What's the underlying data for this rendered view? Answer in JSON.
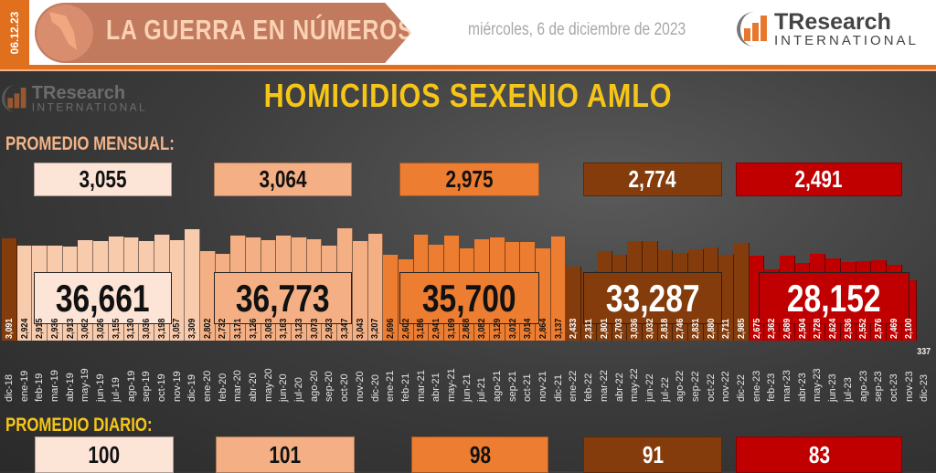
{
  "header": {
    "date_strip": "06.12.23",
    "banner_title": "LA GUERRA EN NÚMEROS",
    "date_text": "miércoles, 6 de diciembre de 2023",
    "logo_brand": "TResearch",
    "logo_sub": "INTERNATIONAL"
  },
  "chart_data": {
    "type": "bar",
    "title": "HOMICIDIOS SEXENIO AMLO",
    "categories": [
      "dic-18",
      "ene-19",
      "feb-19",
      "mar-19",
      "abr-19",
      "may-19",
      "jun-19",
      "jul-19",
      "ago-19",
      "sep-19",
      "oct-19",
      "nov-19",
      "dic-19",
      "ene-20",
      "feb-20",
      "mar-20",
      "abr-20",
      "may-20",
      "jun-20",
      "jul-20",
      "ago-20",
      "sep-20",
      "oct-20",
      "nov-20",
      "dic-20",
      "ene-21",
      "feb-21",
      "mar-21",
      "abr-21",
      "may-21",
      "jun-21",
      "jul-21",
      "ago-21",
      "sep-21",
      "oct-21",
      "nov-21",
      "dic-21",
      "ene-22",
      "feb-22",
      "mar-22",
      "abr-22",
      "may-22",
      "jun-22",
      "jul-22",
      "ago-22",
      "sep-22",
      "oct-22",
      "nov-22",
      "dic-22",
      "ene-23",
      "feb-23",
      "mar-23",
      "abr-23",
      "may-23",
      "jun-23",
      "jul-23",
      "ago-23",
      "sep-23",
      "oct-23",
      "nov-23",
      "dic-23"
    ],
    "values": [
      3091,
      2924,
      2915,
      2936,
      2913,
      3062,
      3026,
      3155,
      3130,
      3036,
      3198,
      3057,
      3309,
      2802,
      2732,
      3171,
      3126,
      3063,
      3163,
      3123,
      3073,
      2923,
      3347,
      3043,
      3207,
      2696,
      2602,
      3186,
      2941,
      3169,
      2868,
      3082,
      3129,
      3012,
      3014,
      2864,
      3137,
      2433,
      2311,
      2801,
      2703,
      3036,
      3032,
      2818,
      2746,
      2831,
      2880,
      2711,
      2985,
      2675,
      2362,
      2689,
      2504,
      2728,
      2624,
      2536,
      2552,
      2576,
      2469,
      2100,
      337
    ],
    "value_labels": [
      "3,091",
      "2,924",
      "2,915",
      "2,936",
      "2,913",
      "3,062",
      "3,026",
      "3,155",
      "3,130",
      "3,036",
      "3,198",
      "3,057",
      "3,309",
      "2,802",
      "2,732",
      "3,171",
      "3,126",
      "3,063",
      "3,163",
      "3,123",
      "3,073",
      "2,923",
      "3,347",
      "3,043",
      "3,207",
      "2,696",
      "2,602",
      "3,186",
      "2,941",
      "3,169",
      "2,868",
      "3,082",
      "3,129",
      "3,012",
      "3,014",
      "2,864",
      "3,137",
      "2,433",
      "2,311",
      "2,801",
      "2,703",
      "3,036",
      "3,032",
      "2,818",
      "2,746",
      "2,831",
      "2,880",
      "2,711",
      "2,985",
      "2,675",
      "2,362",
      "2,689",
      "2,504",
      "2,728",
      "2,624",
      "2,536",
      "2,552",
      "2,576",
      "2,469",
      "2,100",
      "337"
    ],
    "year_colors": {
      "2018": "#843c0c",
      "2019": "#f8cbad",
      "2020": "#f4b084",
      "2021": "#ed7d31",
      "2022": "#843c0c",
      "2023": "#c00000"
    },
    "grid": false,
    "legend": "none"
  },
  "labels": {
    "monthly_avg": "PROMEDIO MENSUAL:",
    "daily_avg": "PROMEDIO DIARIO:"
  },
  "years": [
    {
      "avg": "3,055",
      "total": "36,661",
      "daily": "100",
      "color": "#fce4d6",
      "bar": "#f8cbad",
      "text": "#111"
    },
    {
      "avg": "3,064",
      "total": "36,773",
      "daily": "101",
      "color": "#f4b084",
      "bar": "#f4b084",
      "text": "#111"
    },
    {
      "avg": "2,975",
      "total": "35,700",
      "daily": "98",
      "color": "#ed7d31",
      "bar": "#ed7d31",
      "text": "#111"
    },
    {
      "avg": "2,774",
      "total": "33,287",
      "daily": "91",
      "color": "#843c0c",
      "bar": "#843c0c",
      "text": "#fff"
    },
    {
      "avg": "2,491",
      "total": "28,152",
      "daily": "83",
      "color": "#c00000",
      "bar": "#c00000",
      "text": "#fff"
    }
  ]
}
